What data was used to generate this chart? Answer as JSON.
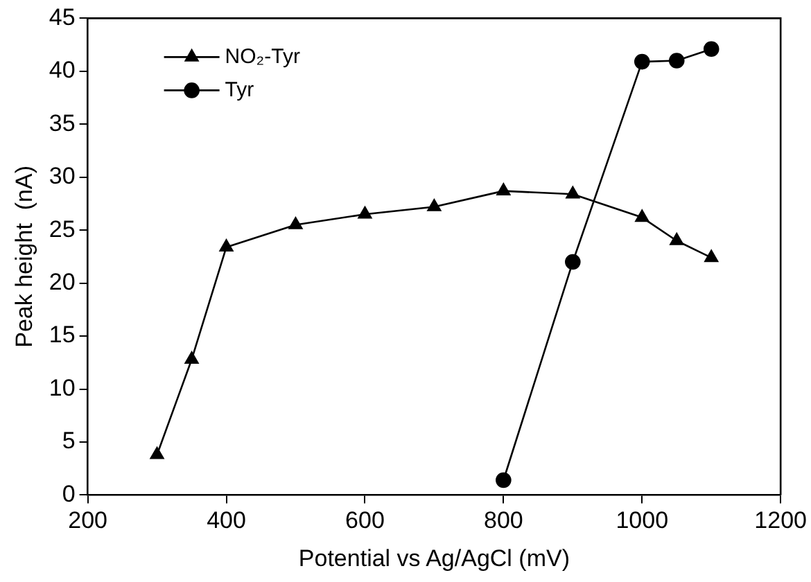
{
  "chart_data": {
    "type": "line",
    "xlabel": "Potential vs Ag/AgCl (mV)",
    "ylabel": "Peak height  (nA)",
    "xlim": [
      200,
      1200
    ],
    "xticks": [
      200,
      400,
      600,
      800,
      1000,
      1200
    ],
    "ylim": [
      0,
      45
    ],
    "yticks": [
      0,
      5,
      10,
      15,
      20,
      25,
      30,
      35,
      40,
      45
    ],
    "grid": false,
    "legend": "top left",
    "line_style": "solid",
    "series": [
      {
        "name": "NO₂-Tyr",
        "color": "#000000",
        "marker": "triangle",
        "x": [
          300,
          350,
          400,
          500,
          600,
          700,
          800,
          900,
          1000,
          1050,
          1100
        ],
        "values": [
          3.8,
          12.8,
          23.4,
          25.5,
          26.5,
          27.2,
          28.7,
          28.4,
          26.2,
          24,
          22.4
        ]
      },
      {
        "name": "Tyr",
        "color": "#000000",
        "marker": "circle",
        "x": [
          800,
          900,
          1000,
          1050,
          1100
        ],
        "values": [
          1.4,
          22,
          40.9,
          41,
          42.1
        ]
      }
    ]
  }
}
